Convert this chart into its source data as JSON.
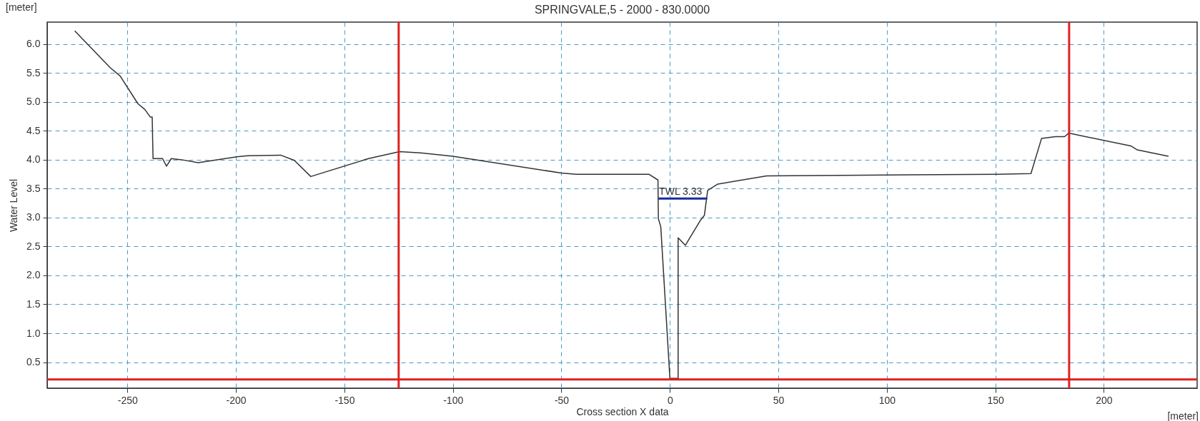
{
  "chart_data": {
    "type": "line",
    "title": "SPRINGVALE,5 - 2000 - 830.0000",
    "xlabel": "Cross section X data",
    "ylabel": "Water Level",
    "xlim": [
      -287,
      243
    ],
    "ylim": [
      0.05,
      6.38
    ],
    "xticks": [
      -250,
      -200,
      -150,
      -100,
      -50,
      0,
      50,
      100,
      150,
      200
    ],
    "yticks": [
      0.5,
      {
        "value": 1,
        "label": "1.0"
      },
      1.5,
      {
        "value": 2,
        "label": "2.0"
      },
      2.5,
      {
        "value": 3,
        "label": "3.0"
      },
      3.5,
      {
        "value": 4,
        "label": "4.0"
      },
      4.5,
      {
        "value": 5,
        "label": "5.0"
      },
      5.5,
      {
        "value": 6,
        "label": "6.0"
      }
    ],
    "grid": true,
    "series": [
      {
        "color": "#333333",
        "x": [
          -274.3,
          -257.9,
          -253.4,
          -245.2,
          -242.0,
          -239.5,
          -238.6,
          -238.2,
          -233.8,
          -232.0,
          -229.8,
          -225.0,
          -217.4,
          -199.6,
          -194.6,
          -179.4,
          -173.1,
          -165.5,
          -138.9,
          -124.6,
          -114.9,
          -100,
          -50,
          -43.1,
          -15.7,
          -9.7,
          -5.5,
          -5.3,
          -4.2,
          0,
          3.8,
          3.8,
          7.1,
          14.2,
          15.9,
          17.4,
          22.1,
          44.6,
          79.6,
          150.9,
          166.4,
          171.3,
          177.7,
          181.9,
          183.8,
          212.4,
          215.4,
          229.8
        ],
        "values": [
          6.23,
          5.59,
          5.45,
          4.97,
          4.87,
          4.74,
          4.74,
          4.02,
          4.02,
          3.89,
          4.02,
          4.0,
          3.95,
          4.05,
          4.07,
          4.08,
          3.99,
          3.71,
          4.02,
          4.14,
          4.12,
          4.06,
          3.77,
          3.75,
          3.75,
          3.75,
          3.65,
          2.98,
          2.84,
          0.22,
          0.22,
          2.65,
          2.52,
          2.96,
          3.04,
          3.47,
          3.58,
          3.72,
          3.73,
          3.75,
          3.76,
          4.37,
          4.4,
          4.4,
          4.46,
          4.24,
          4.17,
          4.06
        ]
      },
      {
        "color": "#1a2aa0",
        "x": [
          -5.3,
          17.2
        ],
        "values": [
          3.33,
          3.33
        ]
      }
    ],
    "ref_lines": [
      {
        "axis": "x",
        "value": -125,
        "color": "#e02020"
      },
      {
        "axis": "x",
        "value": 184,
        "color": "#e02020"
      },
      {
        "axis": "y",
        "value": 0.2,
        "color": "#e02020"
      }
    ],
    "annotations": [
      "[meter]",
      "[meter]",
      {
        "text": "TWL  3.33",
        "x": -5,
        "y": 3.33
      }
    ]
  }
}
